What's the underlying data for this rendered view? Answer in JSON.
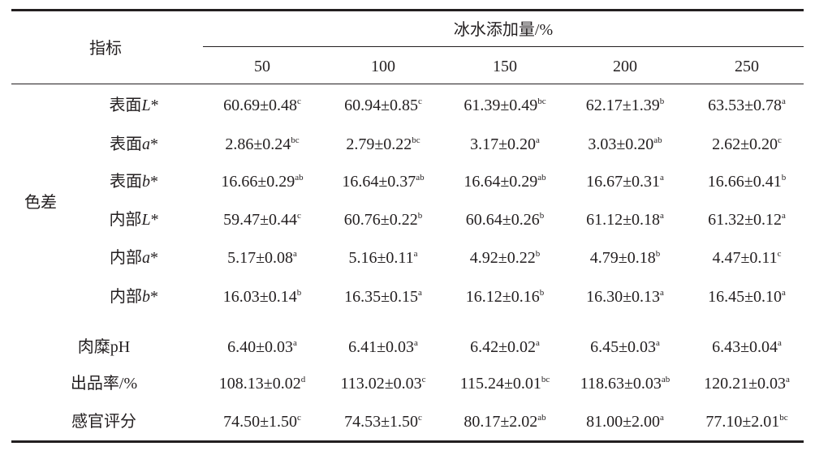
{
  "table": {
    "header": {
      "index_label": "指标",
      "group_label": "冰水添加量/%",
      "columns": [
        "50",
        "100",
        "150",
        "200",
        "250"
      ]
    },
    "color_group": {
      "label": "色差",
      "rows": [
        {
          "label": {
            "prefix": "表面",
            "italic": "L",
            "suffix": "*"
          },
          "cells": [
            {
              "value": "60.69±0.48",
              "sup": "c"
            },
            {
              "value": "60.94±0.85",
              "sup": "c"
            },
            {
              "value": "61.39±0.49",
              "sup": "bc"
            },
            {
              "value": "62.17±1.39",
              "sup": "b"
            },
            {
              "value": "63.53±0.78",
              "sup": "a"
            }
          ]
        },
        {
          "label": {
            "prefix": "表面",
            "italic": "a",
            "suffix": "*"
          },
          "cells": [
            {
              "value": "2.86±0.24",
              "sup": "bc"
            },
            {
              "value": "2.79±0.22",
              "sup": "bc"
            },
            {
              "value": "3.17±0.20",
              "sup": "a"
            },
            {
              "value": "3.03±0.20",
              "sup": "ab"
            },
            {
              "value": "2.62±0.20",
              "sup": "c"
            }
          ]
        },
        {
          "label": {
            "prefix": "表面",
            "italic": "b",
            "suffix": "*"
          },
          "cells": [
            {
              "value": "16.66±0.29",
              "sup": "ab"
            },
            {
              "value": "16.64±0.37",
              "sup": "ab"
            },
            {
              "value": "16.64±0.29",
              "sup": "ab"
            },
            {
              "value": "16.67±0.31",
              "sup": "a"
            },
            {
              "value": "16.66±0.41",
              "sup": "b"
            }
          ]
        },
        {
          "label": {
            "prefix": "内部",
            "italic": "L",
            "suffix": "*"
          },
          "cells": [
            {
              "value": "59.47±0.44",
              "sup": "c"
            },
            {
              "value": "60.76±0.22",
              "sup": "b"
            },
            {
              "value": "60.64±0.26",
              "sup": "b"
            },
            {
              "value": "61.12±0.18",
              "sup": "a"
            },
            {
              "value": "61.32±0.12",
              "sup": "a"
            }
          ]
        },
        {
          "label": {
            "prefix": "内部",
            "italic": "a",
            "suffix": "*"
          },
          "cells": [
            {
              "value": "5.17±0.08",
              "sup": "a"
            },
            {
              "value": "5.16±0.11",
              "sup": "a"
            },
            {
              "value": "4.92±0.22",
              "sup": "b"
            },
            {
              "value": "4.79±0.18",
              "sup": "b"
            },
            {
              "value": "4.47±0.11",
              "sup": "c"
            }
          ]
        },
        {
          "label": {
            "prefix": "内部",
            "italic": "b",
            "suffix": "*"
          },
          "cells": [
            {
              "value": "16.03±0.14",
              "sup": "b"
            },
            {
              "value": "16.35±0.15",
              "sup": "a"
            },
            {
              "value": "16.12±0.16",
              "sup": "b"
            },
            {
              "value": "16.30±0.13",
              "sup": "a"
            },
            {
              "value": "16.45±0.10",
              "sup": "a"
            }
          ]
        }
      ]
    },
    "other_rows": [
      {
        "label": "肉糜pH",
        "cells": [
          {
            "value": "6.40±0.03",
            "sup": "a"
          },
          {
            "value": "6.41±0.03",
            "sup": "a"
          },
          {
            "value": "6.42±0.02",
            "sup": "a"
          },
          {
            "value": "6.45±0.03",
            "sup": "a"
          },
          {
            "value": "6.43±0.04",
            "sup": "a"
          }
        ]
      },
      {
        "label": "出品率/%",
        "cells": [
          {
            "value": "108.13±0.02",
            "sup": "d"
          },
          {
            "value": "113.02±0.03",
            "sup": "c"
          },
          {
            "value": "115.24±0.01",
            "sup": "bc"
          },
          {
            "value": "118.63±0.03",
            "sup": "ab"
          },
          {
            "value": "120.21±0.03",
            "sup": "a"
          }
        ]
      },
      {
        "label": "感官评分",
        "cells": [
          {
            "value": "74.50±1.50",
            "sup": "c"
          },
          {
            "value": "74.53±1.50",
            "sup": "c"
          },
          {
            "value": "80.17±2.02",
            "sup": "ab"
          },
          {
            "value": "81.00±2.00",
            "sup": "a"
          },
          {
            "value": "77.10±2.01",
            "sup": "bc"
          }
        ]
      }
    ]
  }
}
